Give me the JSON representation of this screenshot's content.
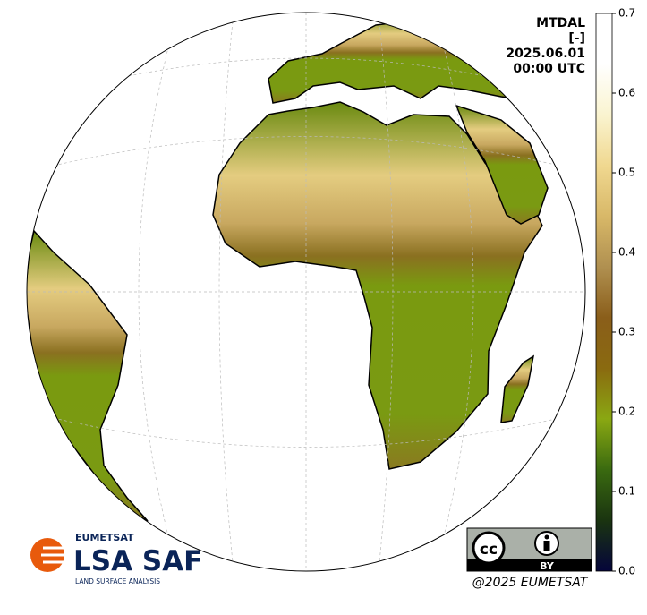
{
  "title_lines": [
    "MTDAL",
    "[-]",
    "2025.06.01",
    "00:00 UTC"
  ],
  "colorbar": {
    "lim": [
      0,
      0.7
    ],
    "ticks": [
      {
        "value": 0,
        "label": "0.0"
      },
      {
        "value": 0.1,
        "label": "0.1"
      },
      {
        "value": 0.2,
        "label": "0.2"
      },
      {
        "value": 0.3,
        "label": "0.3"
      },
      {
        "value": 0.4,
        "label": "0.4"
      },
      {
        "value": 0.5,
        "label": "0.5"
      },
      {
        "value": 0.6,
        "label": "0.6"
      },
      {
        "value": 0.7,
        "label": "0.7"
      }
    ],
    "colors": [
      "#05053a",
      "#1a3410",
      "#3a6a10",
      "#8aa812",
      "#8a6a10",
      "#8a5e1a",
      "#b09050",
      "#d8b868",
      "#f0d890",
      "#faf4d0",
      "#ffffff",
      "#ffffff"
    ]
  },
  "logo": {
    "org": "EUMETSAT",
    "name": "LSA SAF",
    "tagline": "LAND SURFACE ANALYSIS"
  },
  "license": {
    "cc": "cc",
    "by": "BY"
  },
  "copyright": "@2025 EUMETSAT"
}
